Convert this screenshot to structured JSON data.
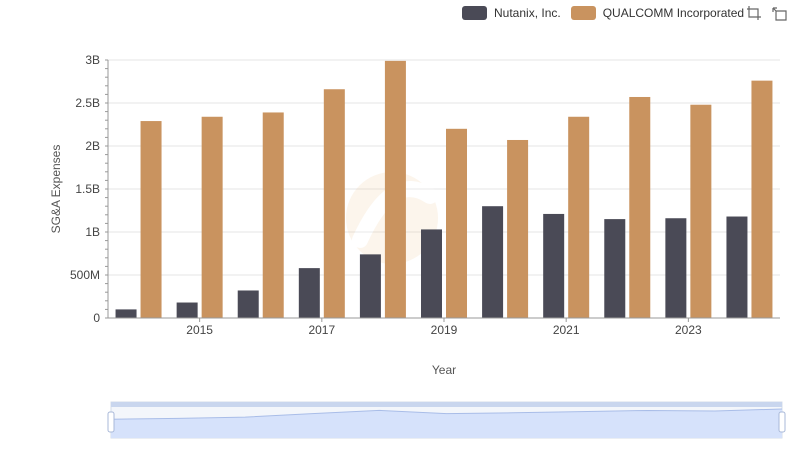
{
  "legend": {
    "items": [
      {
        "label": "Nutanix, Inc.",
        "color": "#4a4a56"
      },
      {
        "label": "QUALCOMM Incorporated",
        "color": "#c9935f"
      }
    ]
  },
  "toolbox": {
    "icons": [
      "zoom-select-icon",
      "zoom-reset-icon"
    ]
  },
  "chart_data": {
    "type": "bar",
    "categories": [
      "2014",
      "2015",
      "2016",
      "2017",
      "2018",
      "2019",
      "2020",
      "2021",
      "2022",
      "2023",
      "2024"
    ],
    "x_tick_labels": [
      "2015",
      "2017",
      "2019",
      "2021",
      "2023"
    ],
    "series": [
      {
        "name": "Nutanix, Inc.",
        "color": "#4a4a56",
        "values": [
          100000000,
          180000000,
          320000000,
          580000000,
          740000000,
          1030000000,
          1300000000,
          1210000000,
          1150000000,
          1160000000,
          1180000000
        ]
      },
      {
        "name": "QUALCOMM Incorporated",
        "color": "#c9935f",
        "values": [
          2290000000,
          2340000000,
          2390000000,
          2660000000,
          2990000000,
          2200000000,
          2070000000,
          2340000000,
          2570000000,
          2480000000,
          2760000000
        ]
      }
    ],
    "ylim": [
      0,
      3000000000
    ],
    "y_ticks": [
      0,
      500000000,
      1000000000,
      1500000000,
      2000000000,
      2500000000,
      3000000000
    ],
    "y_tick_labels": [
      "0",
      "500M",
      "1B",
      "1.5B",
      "2B",
      "2.5B",
      "3B"
    ],
    "xlabel": "Year",
    "ylabel": "SG&A Expenses",
    "grid": true,
    "legend_position": "top-right",
    "zoom_slider": {
      "start_percent": 0,
      "end_percent": 100
    }
  }
}
